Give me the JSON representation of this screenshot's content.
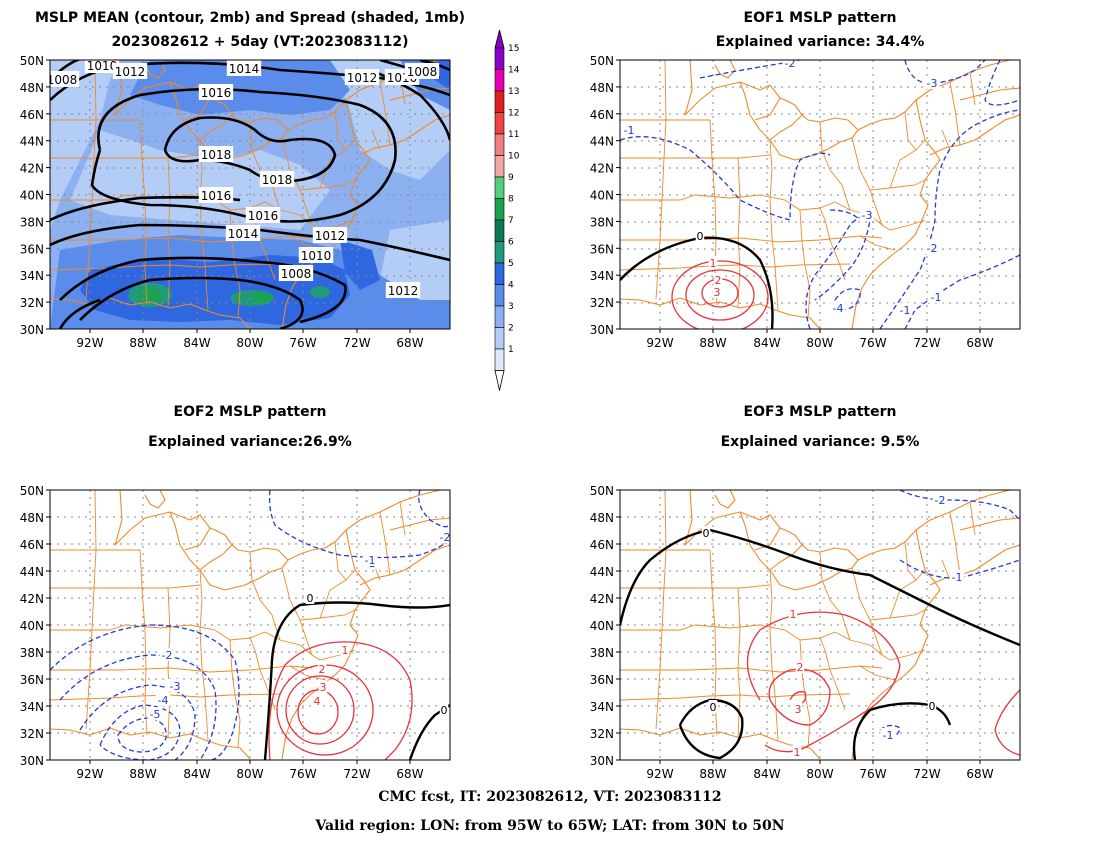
{
  "panels": [
    {
      "title1": "MSLP MEAN (contour, 2mb) and Spread (shaded, 1mb)",
      "title2": "2023082612 + 5day (VT:2023083112)"
    },
    {
      "title1": "EOF1 MSLP pattern",
      "title2": "Explained variance: 34.4%"
    },
    {
      "title1": "EOF2 MSLP pattern",
      "title2": "Explained variance:26.9%"
    },
    {
      "title1": "EOF3 MSLP pattern",
      "title2": "Explained variance: 9.5%"
    }
  ],
  "lat_labels": [
    "50N",
    "48N",
    "46N",
    "44N",
    "42N",
    "40N",
    "38N",
    "36N",
    "34N",
    "32N",
    "30N"
  ],
  "lon_labels": [
    "92W",
    "88W",
    "84W",
    "80W",
    "76W",
    "72W",
    "68W"
  ],
  "colorbar": {
    "levels": [
      "1",
      "2",
      "3",
      "4",
      "5",
      "6",
      "7",
      "8",
      "9",
      "10",
      "11",
      "12",
      "13",
      "14",
      "15"
    ],
    "colors": [
      "#dce8fb",
      "#b4cdf6",
      "#8cb0f0",
      "#5a8cec",
      "#2e67e0",
      "#1f9a7a",
      "#0e7a55",
      "#19a550",
      "#52cf79",
      "#f4a6a6",
      "#f08080",
      "#ec4545",
      "#e01e1e",
      "#e600b4",
      "#8a00c8"
    ]
  },
  "mean_contour_labels": [
    "1008",
    "1010",
    "1012",
    "1012",
    "1010",
    "1008",
    "1014",
    "1016",
    "1018",
    "1018",
    "1016",
    "1016",
    "1014",
    "1012",
    "1010",
    "1008",
    "1012"
  ],
  "eof1_labels": [
    "-2",
    "-3",
    "-1",
    "-1",
    "-3",
    "-2",
    "-1",
    "0",
    "1",
    "2",
    "3",
    "-4"
  ],
  "eof2_labels": [
    "-1",
    "-2",
    "-3",
    "-4",
    "-5",
    "0",
    "1",
    "2",
    "3",
    "4",
    "-1",
    "0",
    "-2"
  ],
  "eof3_labels": [
    "-2",
    "-1",
    "0",
    "1",
    "2",
    "3",
    "0",
    "0",
    "-1",
    "1"
  ],
  "footer1": "CMC fcst, IT: 2023082612, VT: 2023083112",
  "footer2": "Valid region: LON: from 95W to 65W; LAT: from 30N to 50N",
  "colors": {
    "map_lines": "#ee8a2a",
    "positive": "#e8323c",
    "negative": "#1e3cd8",
    "zero": "#000000"
  }
}
